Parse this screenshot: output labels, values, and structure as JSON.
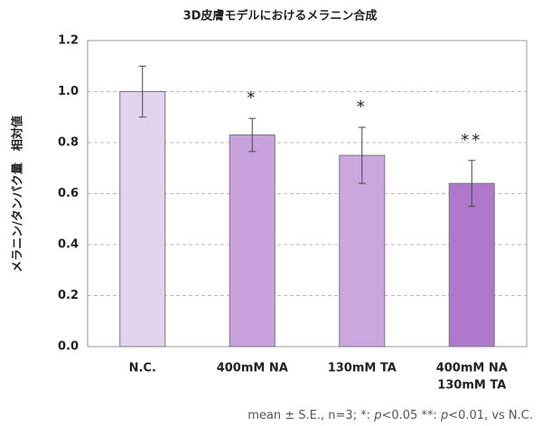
{
  "chart_data": {
    "type": "bar",
    "title": "3D皮膚モデルにおけるメラニン合成",
    "y_label": "メラニン/タンパク量　相対値",
    "categories": [
      [
        "N.C."
      ],
      [
        "400mM NA"
      ],
      [
        "130mM TA"
      ],
      [
        "400mM NA",
        "130mM TA"
      ]
    ],
    "values": [
      1.0,
      0.83,
      0.75,
      0.64
    ],
    "errors": [
      0.1,
      0.065,
      0.11,
      0.09
    ],
    "colors": [
      "#e4d3ef",
      "#c9a1dd",
      "#cca7df",
      "#b078cd"
    ],
    "significance": [
      null,
      "*",
      "*",
      "**"
    ],
    "ylim": [
      0,
      1.2
    ],
    "yticks": [
      {
        "value": 0,
        "label": "0.0"
      },
      0.2,
      0.4,
      0.6,
      0.8,
      {
        "value": 1,
        "label": "1.0"
      },
      1.2
    ],
    "grid": true,
    "footnote": [
      "mean ± S.E., n=3; *: ",
      "p",
      "<0.05 **: ",
      "p",
      "<0.01, vs N.C."
    ]
  }
}
